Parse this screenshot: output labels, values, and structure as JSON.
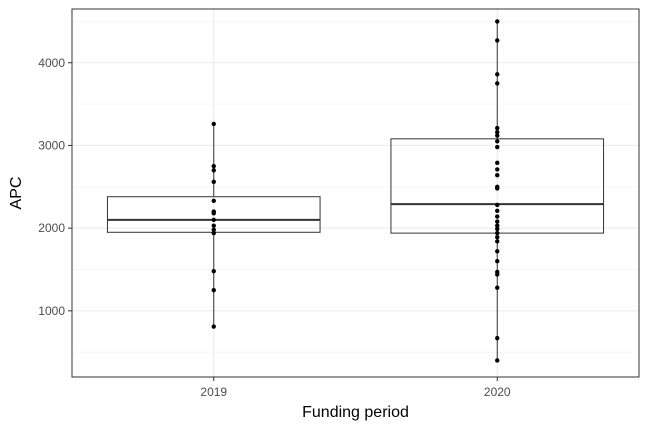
{
  "chart_data": {
    "type": "box",
    "title": "",
    "xlabel": "Funding period",
    "ylabel": "APC",
    "categories": [
      "2019",
      "2020"
    ],
    "ylim": [
      200,
      4650
    ],
    "yticks": [
      1000,
      2000,
      3000,
      4000
    ],
    "ytick_labels": [
      "1000",
      "2000",
      "3000",
      "4000"
    ],
    "grid": true,
    "boxes": [
      {
        "category": "2019",
        "q1": 1950,
        "median": 2100,
        "q3": 2380,
        "whisker_low": 810,
        "whisker_high": 3260
      },
      {
        "category": "2020",
        "q1": 1940,
        "median": 2290,
        "q3": 3080,
        "whisker_low": 400,
        "whisker_high": 4500
      }
    ],
    "points": [
      {
        "category": "2019",
        "values": [
          3260,
          2750,
          2700,
          2560,
          2330,
          2200,
          2180,
          2100,
          2030,
          1980,
          1940,
          1480,
          1250,
          810
        ]
      },
      {
        "category": "2020",
        "values": [
          4500,
          4270,
          3860,
          3750,
          3210,
          3160,
          3120,
          3050,
          2980,
          2790,
          2710,
          2640,
          2500,
          2480,
          2280,
          2210,
          2140,
          2080,
          2030,
          1990,
          1940,
          1890,
          1840,
          1720,
          1600,
          1470,
          1440,
          1280,
          670,
          400
        ]
      }
    ],
    "colors": {
      "box_fill": "#ffffff",
      "box_line": "#333333",
      "median": "#333333",
      "point": "#000000",
      "grid_major": "#ebebeb",
      "grid_minor": "#f5f5f5",
      "panel_border": "#333333"
    }
  }
}
